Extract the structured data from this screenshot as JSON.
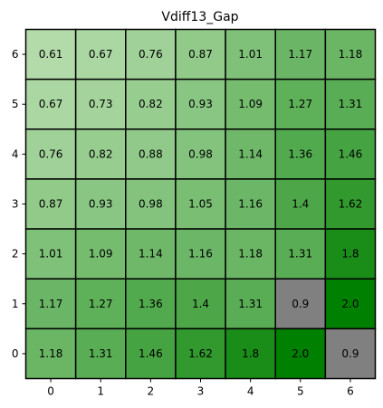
{
  "chart_data": {
    "type": "heatmap",
    "title": "Vdiff13_Gap",
    "xlabel": "",
    "ylabel": "",
    "x_ticks": [
      "0",
      "1",
      "2",
      "3",
      "4",
      "5",
      "6"
    ],
    "y_ticks": [
      "0",
      "1",
      "2",
      "3",
      "4",
      "5",
      "6"
    ],
    "rows_top_to_bottom_y": [
      6,
      5,
      4,
      3,
      2,
      1,
      0
    ],
    "values": [
      [
        0.61,
        0.67,
        0.76,
        0.87,
        1.01,
        1.17,
        1.18
      ],
      [
        0.67,
        0.73,
        0.82,
        0.93,
        1.09,
        1.27,
        1.31
      ],
      [
        0.76,
        0.82,
        0.88,
        0.98,
        1.14,
        1.36,
        1.46
      ],
      [
        0.87,
        0.93,
        0.98,
        1.05,
        1.16,
        1.4,
        1.62
      ],
      [
        1.01,
        1.09,
        1.14,
        1.16,
        1.18,
        1.31,
        1.8
      ],
      [
        1.17,
        1.27,
        1.36,
        1.4,
        1.31,
        0.9,
        2.0
      ],
      [
        1.18,
        1.31,
        1.46,
        1.62,
        1.8,
        2.0,
        0.9
      ]
    ],
    "cell_labels": [
      [
        "0.61",
        "0.67",
        "0.76",
        "0.87",
        "1.01",
        "1.17",
        "1.18"
      ],
      [
        "0.67",
        "0.73",
        "0.82",
        "0.93",
        "1.09",
        "1.27",
        "1.31"
      ],
      [
        "0.76",
        "0.82",
        "0.88",
        "0.98",
        "1.14",
        "1.36",
        "1.46"
      ],
      [
        "0.87",
        "0.93",
        "0.98",
        "1.05",
        "1.16",
        "1.4",
        "1.62"
      ],
      [
        "1.01",
        "1.09",
        "1.14",
        "1.16",
        "1.18",
        "1.31",
        "1.8"
      ],
      [
        "1.17",
        "1.27",
        "1.36",
        "1.4",
        "1.31",
        "0.9",
        "2.0"
      ],
      [
        "1.18",
        "1.31",
        "1.46",
        "1.62",
        "1.8",
        "2.0",
        "0.9"
      ]
    ],
    "gray_cells": [
      [
        5,
        1
      ],
      [
        6,
        0
      ]
    ],
    "color_scale": {
      "min": 0.61,
      "max": 2.0,
      "low_color": "#b3dbaa",
      "high_color": "#008000"
    },
    "gray_color": "#808080",
    "grid": false,
    "legend": "none"
  }
}
